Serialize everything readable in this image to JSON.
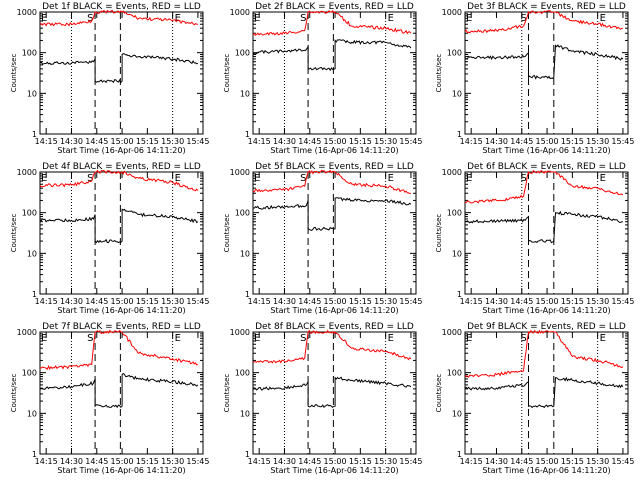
{
  "figure": {
    "panel_title_suffix": "BLACK = Events, RED = LLD",
    "x_axis_title": "Start Time (16-Apr-06 14:11:20)",
    "y_axis_title": "Counts/sec",
    "x_tick_labels": [
      "14:15",
      "14:30",
      "14:45",
      "15:00",
      "15:15",
      "15:30",
      "15:45"
    ],
    "y_tick_labels": [
      "1",
      "10",
      "100",
      "1000"
    ],
    "markers": {
      "start": "E",
      "saa": "S",
      "end": "E"
    },
    "colors": {
      "events": "#000000",
      "lld": "#ff0000"
    }
  },
  "chart_data": [
    {
      "type": "line",
      "title": "Det 1f BLACK = Events, RED = LLD",
      "xlabel": "Start Time (16-Apr-06 14:11:20)",
      "ylabel": "Counts/sec",
      "y_scale": "log",
      "ylim": [
        1,
        1000
      ],
      "xlim": [
        "14:11:20",
        "15:48"
      ],
      "x_ticks": [
        "14:15",
        "14:30",
        "14:45",
        "15:00",
        "15:15",
        "15:30",
        "15:45"
      ],
      "dotted_lines_at": [
        "14:30",
        "15:30"
      ],
      "dashed_lines_at": [
        "14:44",
        "14:59"
      ],
      "series": [
        {
          "name": "Events",
          "color": "#000000",
          "x": [
            "14:11:20",
            "14:30",
            "14:43",
            "14:44",
            "14:44",
            "15:00",
            "15:00",
            "15:10",
            "15:30",
            "15:45"
          ],
          "y": [
            55,
            55,
            60,
            70,
            20,
            20,
            90,
            80,
            70,
            55
          ]
        },
        {
          "name": "LLD",
          "color": "#ff0000",
          "x": [
            "14:11:20",
            "14:30",
            "14:42",
            "14:44",
            "15:00",
            "15:00",
            "15:10",
            "15:30",
            "15:45"
          ],
          "y": [
            500,
            500,
            600,
            1000,
            1000,
            1000,
            700,
            620,
            500
          ]
        }
      ]
    },
    {
      "type": "line",
      "title": "Det 2f BLACK = Events, RED = LLD",
      "xlabel": "Start Time (16-Apr-06 14:11:20)",
      "ylabel": "Counts/sec",
      "y_scale": "log",
      "ylim": [
        1,
        1000
      ],
      "xlim": [
        "14:11:20",
        "15:48"
      ],
      "x_ticks": [
        "14:15",
        "14:30",
        "14:45",
        "15:00",
        "15:15",
        "15:30",
        "15:45"
      ],
      "dotted_lines_at": [
        "14:30",
        "15:30"
      ],
      "dashed_lines_at": [
        "14:44",
        "14:59"
      ],
      "series": [
        {
          "name": "Events",
          "color": "#000000",
          "x": [
            "14:11:20",
            "14:30",
            "14:43",
            "14:44",
            "14:44",
            "15:00",
            "15:00",
            "15:10",
            "15:30",
            "15:45"
          ],
          "y": [
            100,
            110,
            120,
            140,
            40,
            40,
            200,
            180,
            180,
            130
          ]
        },
        {
          "name": "LLD",
          "color": "#ff0000",
          "x": [
            "14:11:20",
            "14:30",
            "14:42",
            "14:44",
            "15:00",
            "15:00",
            "15:10",
            "15:30",
            "15:45"
          ],
          "y": [
            280,
            300,
            350,
            1000,
            1000,
            1000,
            450,
            400,
            300
          ]
        }
      ]
    },
    {
      "type": "line",
      "title": "Det 3f BLACK = Events, RED = LLD",
      "xlabel": "Start Time (16-Apr-06 14:11:20)",
      "ylabel": "Counts/sec",
      "y_scale": "log",
      "ylim": [
        1,
        1000
      ],
      "xlim": [
        "14:11:20",
        "15:48"
      ],
      "x_ticks": [
        "14:15",
        "14:30",
        "14:45",
        "15:00",
        "15:15",
        "15:30",
        "15:45"
      ],
      "dotted_lines_at": [
        "14:45",
        "15:30"
      ],
      "dashed_lines_at": [
        "14:49",
        "15:04"
      ],
      "series": [
        {
          "name": "Events",
          "color": "#000000",
          "x": [
            "14:11:20",
            "14:30",
            "14:47",
            "14:49",
            "14:49",
            "15:04",
            "15:05",
            "15:15",
            "15:30",
            "15:45"
          ],
          "y": [
            75,
            75,
            80,
            100,
            25,
            25,
            150,
            110,
            90,
            70
          ]
        },
        {
          "name": "LLD",
          "color": "#ff0000",
          "x": [
            "14:11:20",
            "14:30",
            "14:46",
            "14:49",
            "15:04",
            "15:05",
            "15:15",
            "15:30",
            "15:45"
          ],
          "y": [
            330,
            350,
            450,
            1000,
            1000,
            1000,
            600,
            500,
            400
          ]
        }
      ]
    },
    {
      "type": "line",
      "title": "Det 4f BLACK = Events, RED = LLD",
      "xlabel": "Start Time (16-Apr-06 14:11:20)",
      "ylabel": "Counts/sec",
      "y_scale": "log",
      "ylim": [
        1,
        1000
      ],
      "xlim": [
        "14:11:20",
        "15:48"
      ],
      "x_ticks": [
        "14:15",
        "14:30",
        "14:45",
        "15:00",
        "15:15",
        "15:30",
        "15:45"
      ],
      "dotted_lines_at": [
        "14:30",
        "15:30"
      ],
      "dashed_lines_at": [
        "14:44",
        "14:59"
      ],
      "series": [
        {
          "name": "Events",
          "color": "#000000",
          "x": [
            "14:11:20",
            "14:30",
            "14:43",
            "14:44",
            "14:44",
            "15:00",
            "15:00",
            "15:10",
            "15:30",
            "15:45"
          ],
          "y": [
            65,
            65,
            70,
            90,
            20,
            20,
            120,
            90,
            80,
            60
          ]
        },
        {
          "name": "LLD",
          "color": "#ff0000",
          "x": [
            "14:11:20",
            "14:30",
            "14:42",
            "14:44",
            "15:00",
            "15:00",
            "15:10",
            "15:30",
            "15:45"
          ],
          "y": [
            470,
            480,
            600,
            1000,
            1000,
            1000,
            700,
            550,
            350
          ]
        }
      ]
    },
    {
      "type": "line",
      "title": "Det 5f BLACK = Events, RED = LLD",
      "xlabel": "Start Time (16-Apr-06 14:11:20)",
      "ylabel": "Counts/sec",
      "y_scale": "log",
      "ylim": [
        1,
        1000
      ],
      "xlim": [
        "14:11:20",
        "15:48"
      ],
      "x_ticks": [
        "14:15",
        "14:30",
        "14:45",
        "15:00",
        "15:15",
        "15:30",
        "15:45"
      ],
      "dotted_lines_at": [
        "14:30",
        "15:30"
      ],
      "dashed_lines_at": [
        "14:44",
        "14:59"
      ],
      "series": [
        {
          "name": "Events",
          "color": "#000000",
          "x": [
            "14:11:20",
            "14:30",
            "14:43",
            "14:44",
            "14:44",
            "15:00",
            "15:00",
            "15:10",
            "15:30",
            "15:45"
          ],
          "y": [
            130,
            140,
            150,
            200,
            40,
            40,
            230,
            200,
            200,
            160
          ]
        },
        {
          "name": "LLD",
          "color": "#ff0000",
          "x": [
            "14:11:20",
            "14:30",
            "14:42",
            "14:44",
            "15:00",
            "15:00",
            "15:10",
            "15:30",
            "15:45"
          ],
          "y": [
            340,
            360,
            450,
            1000,
            1000,
            1000,
            500,
            450,
            300
          ]
        }
      ]
    },
    {
      "type": "line",
      "title": "Det 6f BLACK = Events, RED = LLD",
      "xlabel": "Start Time (16-Apr-06 14:11:20)",
      "ylabel": "Counts/sec",
      "y_scale": "log",
      "ylim": [
        1,
        1000
      ],
      "xlim": [
        "14:11:20",
        "15:48"
      ],
      "x_ticks": [
        "14:15",
        "14:30",
        "14:45",
        "15:00",
        "15:15",
        "15:30",
        "15:45"
      ],
      "dotted_lines_at": [
        "14:45",
        "15:30"
      ],
      "dashed_lines_at": [
        "14:49",
        "15:04"
      ],
      "series": [
        {
          "name": "Events",
          "color": "#000000",
          "x": [
            "14:11:20",
            "14:30",
            "14:47",
            "14:49",
            "14:49",
            "15:04",
            "15:05",
            "15:15",
            "15:30",
            "15:45"
          ],
          "y": [
            60,
            62,
            65,
            80,
            20,
            20,
            100,
            90,
            80,
            60
          ]
        },
        {
          "name": "LLD",
          "color": "#ff0000",
          "x": [
            "14:11:20",
            "14:30",
            "14:46",
            "14:49",
            "15:04",
            "15:05",
            "15:15",
            "15:30",
            "15:45"
          ],
          "y": [
            180,
            200,
            250,
            1000,
            1000,
            1000,
            450,
            400,
            270
          ]
        }
      ]
    },
    {
      "type": "line",
      "title": "Det 7f BLACK = Events, RED = LLD",
      "xlabel": "Start Time (16-Apr-06 14:11:20)",
      "ylabel": "Counts/sec",
      "y_scale": "log",
      "ylim": [
        1,
        1000
      ],
      "xlim": [
        "14:11:20",
        "15:48"
      ],
      "x_ticks": [
        "14:15",
        "14:30",
        "14:45",
        "15:00",
        "15:15",
        "15:30",
        "15:45"
      ],
      "dotted_lines_at": [
        "14:30",
        "15:30"
      ],
      "dashed_lines_at": [
        "14:44",
        "14:59"
      ],
      "series": [
        {
          "name": "Events",
          "color": "#000000",
          "x": [
            "14:11:20",
            "14:30",
            "14:43",
            "14:44",
            "14:44",
            "15:00",
            "15:00",
            "15:10",
            "15:30",
            "15:45"
          ],
          "y": [
            40,
            45,
            55,
            70,
            15,
            15,
            90,
            70,
            60,
            50
          ]
        },
        {
          "name": "LLD",
          "color": "#ff0000",
          "x": [
            "14:11:20",
            "14:30",
            "14:42",
            "14:44",
            "15:00",
            "15:00",
            "15:10",
            "15:30",
            "15:45"
          ],
          "y": [
            130,
            140,
            160,
            1000,
            1000,
            1000,
            300,
            220,
            160
          ]
        }
      ]
    },
    {
      "type": "line",
      "title": "Det 8f BLACK = Events, RED = LLD",
      "xlabel": "Start Time (16-Apr-06 14:11:20)",
      "ylabel": "Counts/sec",
      "y_scale": "log",
      "ylim": [
        1,
        1000
      ],
      "xlim": [
        "14:11:20",
        "15:48"
      ],
      "x_ticks": [
        "14:15",
        "14:30",
        "14:45",
        "15:00",
        "15:15",
        "15:30",
        "15:45"
      ],
      "dotted_lines_at": [
        "14:30",
        "15:30"
      ],
      "dashed_lines_at": [
        "14:44",
        "14:59"
      ],
      "series": [
        {
          "name": "Events",
          "color": "#000000",
          "x": [
            "14:11:20",
            "14:30",
            "14:43",
            "14:44",
            "14:44",
            "15:00",
            "15:00",
            "15:10",
            "15:30",
            "15:45"
          ],
          "y": [
            40,
            42,
            50,
            60,
            15,
            15,
            75,
            65,
            55,
            45
          ]
        },
        {
          "name": "LLD",
          "color": "#ff0000",
          "x": [
            "14:11:20",
            "14:30",
            "14:42",
            "14:44",
            "15:00",
            "15:00",
            "15:10",
            "15:30",
            "15:45"
          ],
          "y": [
            180,
            190,
            230,
            1000,
            1000,
            1000,
            400,
            330,
            220
          ]
        }
      ]
    },
    {
      "type": "line",
      "title": "Det 9f BLACK = Events, RED = LLD",
      "xlabel": "Start Time (16-Apr-06 14:11:20)",
      "ylabel": "Counts/sec",
      "y_scale": "log",
      "ylim": [
        1,
        1000
      ],
      "xlim": [
        "14:11:20",
        "15:48"
      ],
      "x_ticks": [
        "14:15",
        "14:30",
        "14:45",
        "15:00",
        "15:15",
        "15:30",
        "15:45"
      ],
      "dotted_lines_at": [
        "14:45",
        "15:30"
      ],
      "dashed_lines_at": [
        "14:49",
        "15:04"
      ],
      "series": [
        {
          "name": "Events",
          "color": "#000000",
          "x": [
            "14:11:20",
            "14:30",
            "14:47",
            "14:49",
            "14:49",
            "15:04",
            "15:05",
            "15:15",
            "15:30",
            "15:45"
          ],
          "y": [
            40,
            42,
            50,
            60,
            15,
            15,
            75,
            65,
            55,
            45
          ]
        },
        {
          "name": "LLD",
          "color": "#ff0000",
          "x": [
            "14:11:20",
            "14:30",
            "14:46",
            "14:49",
            "15:04",
            "15:05",
            "15:15",
            "15:30",
            "15:45"
          ],
          "y": [
            80,
            90,
            110,
            1000,
            1000,
            1000,
            250,
            200,
            140
          ]
        }
      ]
    }
  ]
}
